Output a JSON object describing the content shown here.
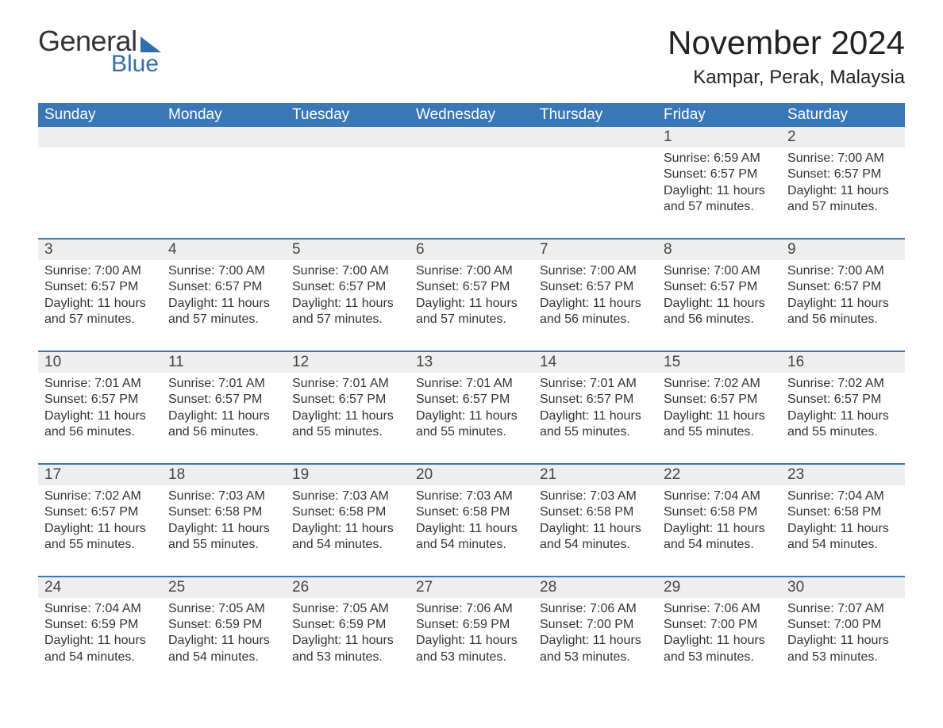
{
  "brand": {
    "part1": "General",
    "part2": "Blue",
    "accent_color": "#2f6ead"
  },
  "title": "November 2024",
  "location": "Kampar, Perak, Malaysia",
  "colors": {
    "header_bg": "#3a77b7",
    "header_text": "#ffffff",
    "daynum_bg": "#eeeeee",
    "row_border": "#3a77b7",
    "body_text": "#333333",
    "page_bg": "#ffffff"
  },
  "typography": {
    "title_fontsize": 42,
    "location_fontsize": 24,
    "header_fontsize": 19,
    "daynum_fontsize": 19,
    "cell_fontsize": 16
  },
  "weekdays": [
    "Sunday",
    "Monday",
    "Tuesday",
    "Wednesday",
    "Thursday",
    "Friday",
    "Saturday"
  ],
  "weeks": [
    [
      null,
      null,
      null,
      null,
      null,
      {
        "n": "1",
        "sunrise": "Sunrise: 6:59 AM",
        "sunset": "Sunset: 6:57 PM",
        "daylight": "Daylight: 11 hours and 57 minutes."
      },
      {
        "n": "2",
        "sunrise": "Sunrise: 7:00 AM",
        "sunset": "Sunset: 6:57 PM",
        "daylight": "Daylight: 11 hours and 57 minutes."
      }
    ],
    [
      {
        "n": "3",
        "sunrise": "Sunrise: 7:00 AM",
        "sunset": "Sunset: 6:57 PM",
        "daylight": "Daylight: 11 hours and 57 minutes."
      },
      {
        "n": "4",
        "sunrise": "Sunrise: 7:00 AM",
        "sunset": "Sunset: 6:57 PM",
        "daylight": "Daylight: 11 hours and 57 minutes."
      },
      {
        "n": "5",
        "sunrise": "Sunrise: 7:00 AM",
        "sunset": "Sunset: 6:57 PM",
        "daylight": "Daylight: 11 hours and 57 minutes."
      },
      {
        "n": "6",
        "sunrise": "Sunrise: 7:00 AM",
        "sunset": "Sunset: 6:57 PM",
        "daylight": "Daylight: 11 hours and 57 minutes."
      },
      {
        "n": "7",
        "sunrise": "Sunrise: 7:00 AM",
        "sunset": "Sunset: 6:57 PM",
        "daylight": "Daylight: 11 hours and 56 minutes."
      },
      {
        "n": "8",
        "sunrise": "Sunrise: 7:00 AM",
        "sunset": "Sunset: 6:57 PM",
        "daylight": "Daylight: 11 hours and 56 minutes."
      },
      {
        "n": "9",
        "sunrise": "Sunrise: 7:00 AM",
        "sunset": "Sunset: 6:57 PM",
        "daylight": "Daylight: 11 hours and 56 minutes."
      }
    ],
    [
      {
        "n": "10",
        "sunrise": "Sunrise: 7:01 AM",
        "sunset": "Sunset: 6:57 PM",
        "daylight": "Daylight: 11 hours and 56 minutes."
      },
      {
        "n": "11",
        "sunrise": "Sunrise: 7:01 AM",
        "sunset": "Sunset: 6:57 PM",
        "daylight": "Daylight: 11 hours and 56 minutes."
      },
      {
        "n": "12",
        "sunrise": "Sunrise: 7:01 AM",
        "sunset": "Sunset: 6:57 PM",
        "daylight": "Daylight: 11 hours and 55 minutes."
      },
      {
        "n": "13",
        "sunrise": "Sunrise: 7:01 AM",
        "sunset": "Sunset: 6:57 PM",
        "daylight": "Daylight: 11 hours and 55 minutes."
      },
      {
        "n": "14",
        "sunrise": "Sunrise: 7:01 AM",
        "sunset": "Sunset: 6:57 PM",
        "daylight": "Daylight: 11 hours and 55 minutes."
      },
      {
        "n": "15",
        "sunrise": "Sunrise: 7:02 AM",
        "sunset": "Sunset: 6:57 PM",
        "daylight": "Daylight: 11 hours and 55 minutes."
      },
      {
        "n": "16",
        "sunrise": "Sunrise: 7:02 AM",
        "sunset": "Sunset: 6:57 PM",
        "daylight": "Daylight: 11 hours and 55 minutes."
      }
    ],
    [
      {
        "n": "17",
        "sunrise": "Sunrise: 7:02 AM",
        "sunset": "Sunset: 6:57 PM",
        "daylight": "Daylight: 11 hours and 55 minutes."
      },
      {
        "n": "18",
        "sunrise": "Sunrise: 7:03 AM",
        "sunset": "Sunset: 6:58 PM",
        "daylight": "Daylight: 11 hours and 55 minutes."
      },
      {
        "n": "19",
        "sunrise": "Sunrise: 7:03 AM",
        "sunset": "Sunset: 6:58 PM",
        "daylight": "Daylight: 11 hours and 54 minutes."
      },
      {
        "n": "20",
        "sunrise": "Sunrise: 7:03 AM",
        "sunset": "Sunset: 6:58 PM",
        "daylight": "Daylight: 11 hours and 54 minutes."
      },
      {
        "n": "21",
        "sunrise": "Sunrise: 7:03 AM",
        "sunset": "Sunset: 6:58 PM",
        "daylight": "Daylight: 11 hours and 54 minutes."
      },
      {
        "n": "22",
        "sunrise": "Sunrise: 7:04 AM",
        "sunset": "Sunset: 6:58 PM",
        "daylight": "Daylight: 11 hours and 54 minutes."
      },
      {
        "n": "23",
        "sunrise": "Sunrise: 7:04 AM",
        "sunset": "Sunset: 6:58 PM",
        "daylight": "Daylight: 11 hours and 54 minutes."
      }
    ],
    [
      {
        "n": "24",
        "sunrise": "Sunrise: 7:04 AM",
        "sunset": "Sunset: 6:59 PM",
        "daylight": "Daylight: 11 hours and 54 minutes."
      },
      {
        "n": "25",
        "sunrise": "Sunrise: 7:05 AM",
        "sunset": "Sunset: 6:59 PM",
        "daylight": "Daylight: 11 hours and 54 minutes."
      },
      {
        "n": "26",
        "sunrise": "Sunrise: 7:05 AM",
        "sunset": "Sunset: 6:59 PM",
        "daylight": "Daylight: 11 hours and 53 minutes."
      },
      {
        "n": "27",
        "sunrise": "Sunrise: 7:06 AM",
        "sunset": "Sunset: 6:59 PM",
        "daylight": "Daylight: 11 hours and 53 minutes."
      },
      {
        "n": "28",
        "sunrise": "Sunrise: 7:06 AM",
        "sunset": "Sunset: 7:00 PM",
        "daylight": "Daylight: 11 hours and 53 minutes."
      },
      {
        "n": "29",
        "sunrise": "Sunrise: 7:06 AM",
        "sunset": "Sunset: 7:00 PM",
        "daylight": "Daylight: 11 hours and 53 minutes."
      },
      {
        "n": "30",
        "sunrise": "Sunrise: 7:07 AM",
        "sunset": "Sunset: 7:00 PM",
        "daylight": "Daylight: 11 hours and 53 minutes."
      }
    ]
  ]
}
